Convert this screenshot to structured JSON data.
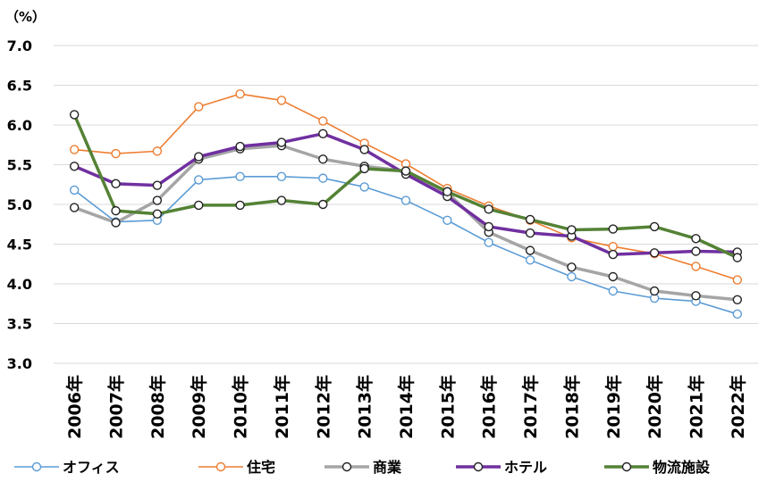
{
  "chart_data": {
    "type": "line",
    "unit_label": "（%）",
    "ylim": [
      3.0,
      7.0
    ],
    "y_ticks": [
      "3.0",
      "3.5",
      "4.0",
      "4.5",
      "5.0",
      "5.5",
      "6.0",
      "6.5",
      "7.0"
    ],
    "grid": "horizontal",
    "legend_position": "bottom",
    "categories": [
      "2006年",
      "2007年",
      "2008年",
      "2009年",
      "2010年",
      "2011年",
      "2012年",
      "2013年",
      "2014年",
      "2015年",
      "2016年",
      "2017年",
      "2018年",
      "2019年",
      "2020年",
      "2021年",
      "2022年"
    ],
    "series": [
      {
        "name": "オフィス",
        "color": "#5b9bd5",
        "line_weight": "thin",
        "values": [
          5.18,
          4.78,
          4.8,
          5.31,
          5.35,
          5.35,
          5.33,
          5.22,
          5.05,
          4.8,
          4.52,
          4.3,
          4.09,
          3.91,
          3.82,
          3.78,
          3.62
        ]
      },
      {
        "name": "住宅",
        "color": "#ed7d31",
        "line_weight": "thin",
        "values": [
          5.69,
          5.64,
          5.67,
          6.23,
          6.39,
          6.31,
          6.05,
          5.77,
          5.51,
          5.2,
          4.98,
          4.8,
          4.58,
          4.47,
          4.38,
          4.22,
          4.05
        ]
      },
      {
        "name": "商業",
        "color": "#a5a5a5",
        "line_weight": "thick",
        "values": [
          4.96,
          4.77,
          5.05,
          5.57,
          5.7,
          5.74,
          5.57,
          5.48,
          5.42,
          5.15,
          4.65,
          4.42,
          4.21,
          4.09,
          3.91,
          3.85,
          3.8
        ]
      },
      {
        "name": "ホテル",
        "color": "#7030a0",
        "line_weight": "thick",
        "values": [
          5.48,
          5.26,
          5.24,
          5.6,
          5.73,
          5.78,
          5.89,
          5.69,
          5.38,
          5.1,
          4.72,
          4.64,
          4.6,
          4.37,
          4.39,
          4.41,
          4.4
        ]
      },
      {
        "name": "物流施設",
        "color": "#548235",
        "line_weight": "thick",
        "values": [
          6.13,
          4.92,
          4.88,
          4.99,
          4.99,
          5.05,
          5.0,
          5.45,
          5.42,
          5.16,
          4.94,
          4.81,
          4.68,
          4.69,
          4.72,
          4.57,
          4.33
        ]
      }
    ]
  }
}
